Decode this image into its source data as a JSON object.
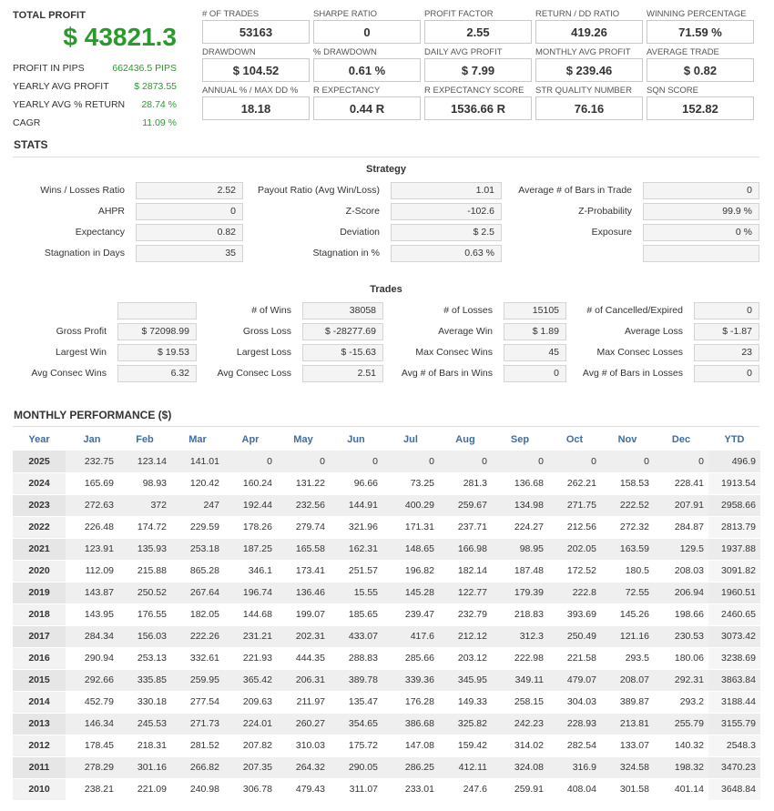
{
  "summary": {
    "total_profit_label": "TOTAL PROFIT",
    "total_profit_value": "$ 43821.3",
    "rows": [
      {
        "label": "PROFIT IN PIPS",
        "value": "662436.5 PIPS"
      },
      {
        "label": "YEARLY AVG PROFIT",
        "value": "$ 2873.55"
      },
      {
        "label": "YEARLY AVG % RETURN",
        "value": "28.74 %"
      },
      {
        "label": "CAGR",
        "value": "11.09 %"
      }
    ]
  },
  "metrics": [
    {
      "label": "# OF TRADES",
      "value": "53163"
    },
    {
      "label": "SHARPE RATIO",
      "value": "0"
    },
    {
      "label": "PROFIT FACTOR",
      "value": "2.55"
    },
    {
      "label": "RETURN / DD RATIO",
      "value": "419.26"
    },
    {
      "label": "WINNING PERCENTAGE",
      "value": "71.59 %"
    },
    {
      "label": "DRAWDOWN",
      "value": "$ 104.52"
    },
    {
      "label": "% DRAWDOWN",
      "value": "0.61 %"
    },
    {
      "label": "DAILY AVG PROFIT",
      "value": "$ 7.99"
    },
    {
      "label": "MONTHLY AVG PROFIT",
      "value": "$ 239.46"
    },
    {
      "label": "AVERAGE TRADE",
      "value": "$ 0.82"
    },
    {
      "label": "ANNUAL % / MAX DD %",
      "value": "18.18"
    },
    {
      "label": "R EXPECTANCY",
      "value": "0.44 R"
    },
    {
      "label": "R EXPECTANCY SCORE",
      "value": "1536.66 R"
    },
    {
      "label": "STR QUALITY NUMBER",
      "value": "76.16"
    },
    {
      "label": "SQN SCORE",
      "value": "152.82"
    }
  ],
  "stats": {
    "title": "STATS",
    "strategy_title": "Strategy",
    "strategy": [
      {
        "l1": "Wins / Losses Ratio",
        "v1": "2.52",
        "l2": "Payout Ratio (Avg Win/Loss)",
        "v2": "1.01",
        "l3": "Average # of Bars in Trade",
        "v3": "0"
      },
      {
        "l1": "AHPR",
        "v1": "0",
        "l2": "Z-Score",
        "v2": "-102.6",
        "l3": "Z-Probability",
        "v3": "99.9 %"
      },
      {
        "l1": "Expectancy",
        "v1": "0.82",
        "l2": "Deviation",
        "v2": "$ 2.5",
        "l3": "Exposure",
        "v3": "0 %"
      },
      {
        "l1": "Stagnation in Days",
        "v1": "35",
        "l2": "Stagnation in %",
        "v2": "0.63 %",
        "l3": "",
        "v3": ""
      }
    ],
    "trades_title": "Trades",
    "trades": [
      {
        "l1": "",
        "v1": "",
        "l2": "# of Wins",
        "v2": "38058",
        "l3": "# of Losses",
        "v3": "15105",
        "l4": "# of Cancelled/Expired",
        "v4": "0"
      },
      {
        "l1": "Gross Profit",
        "v1": "$ 72098.99",
        "l2": "Gross Loss",
        "v2": "$ -28277.69",
        "l3": "Average Win",
        "v3": "$ 1.89",
        "l4": "Average Loss",
        "v4": "$ -1.87"
      },
      {
        "l1": "Largest Win",
        "v1": "$ 19.53",
        "l2": "Largest Loss",
        "v2": "$ -15.63",
        "l3": "Max Consec Wins",
        "v3": "45",
        "l4": "Max Consec Losses",
        "v4": "23"
      },
      {
        "l1": "Avg Consec Wins",
        "v1": "6.32",
        "l2": "Avg Consec Loss",
        "v2": "2.51",
        "l3": "Avg # of Bars in Wins",
        "v3": "0",
        "l4": "Avg # of Bars in Losses",
        "v4": "0"
      }
    ]
  },
  "monthly": {
    "title": "MONTHLY PERFORMANCE ($)",
    "headers": [
      "Year",
      "Jan",
      "Feb",
      "Mar",
      "Apr",
      "May",
      "Jun",
      "Jul",
      "Aug",
      "Sep",
      "Oct",
      "Nov",
      "Dec",
      "YTD"
    ],
    "rows": [
      [
        "2025",
        "232.75",
        "123.14",
        "141.01",
        "0",
        "0",
        "0",
        "0",
        "0",
        "0",
        "0",
        "0",
        "0",
        "496.9"
      ],
      [
        "2024",
        "165.69",
        "98.93",
        "120.42",
        "160.24",
        "131.22",
        "96.66",
        "73.25",
        "281.3",
        "136.68",
        "262.21",
        "158.53",
        "228.41",
        "1913.54"
      ],
      [
        "2023",
        "272.63",
        "372",
        "247",
        "192.44",
        "232.56",
        "144.91",
        "400.29",
        "259.67",
        "134.98",
        "271.75",
        "222.52",
        "207.91",
        "2958.66"
      ],
      [
        "2022",
        "226.48",
        "174.72",
        "229.59",
        "178.26",
        "279.74",
        "321.96",
        "171.31",
        "237.71",
        "224.27",
        "212.56",
        "272.32",
        "284.87",
        "2813.79"
      ],
      [
        "2021",
        "123.91",
        "135.93",
        "253.18",
        "187.25",
        "165.58",
        "162.31",
        "148.65",
        "166.98",
        "98.95",
        "202.05",
        "163.59",
        "129.5",
        "1937.88"
      ],
      [
        "2020",
        "112.09",
        "215.88",
        "865.28",
        "346.1",
        "173.41",
        "251.57",
        "196.82",
        "182.14",
        "187.48",
        "172.52",
        "180.5",
        "208.03",
        "3091.82"
      ],
      [
        "2019",
        "143.87",
        "250.52",
        "267.64",
        "196.74",
        "136.46",
        "15.55",
        "145.28",
        "122.77",
        "179.39",
        "222.8",
        "72.55",
        "206.94",
        "1960.51"
      ],
      [
        "2018",
        "143.95",
        "176.55",
        "182.05",
        "144.68",
        "199.07",
        "185.65",
        "239.47",
        "232.79",
        "218.83",
        "393.69",
        "145.26",
        "198.66",
        "2460.65"
      ],
      [
        "2017",
        "284.34",
        "156.03",
        "222.26",
        "231.21",
        "202.31",
        "433.07",
        "417.6",
        "212.12",
        "312.3",
        "250.49",
        "121.16",
        "230.53",
        "3073.42"
      ],
      [
        "2016",
        "290.94",
        "253.13",
        "332.61",
        "221.93",
        "444.35",
        "288.83",
        "285.66",
        "203.12",
        "222.98",
        "221.58",
        "293.5",
        "180.06",
        "3238.69"
      ],
      [
        "2015",
        "292.66",
        "335.85",
        "259.95",
        "365.42",
        "206.31",
        "389.78",
        "339.36",
        "345.95",
        "349.11",
        "479.07",
        "208.07",
        "292.31",
        "3863.84"
      ],
      [
        "2014",
        "452.79",
        "330.18",
        "277.54",
        "209.63",
        "211.97",
        "135.47",
        "176.28",
        "149.33",
        "258.15",
        "304.03",
        "389.87",
        "293.2",
        "3188.44"
      ],
      [
        "2013",
        "146.34",
        "245.53",
        "271.73",
        "224.01",
        "260.27",
        "354.65",
        "386.68",
        "325.82",
        "242.23",
        "228.93",
        "213.81",
        "255.79",
        "3155.79"
      ],
      [
        "2012",
        "178.45",
        "218.31",
        "281.52",
        "207.82",
        "310.03",
        "175.72",
        "147.08",
        "159.42",
        "314.02",
        "282.54",
        "133.07",
        "140.32",
        "2548.3"
      ],
      [
        "2011",
        "278.29",
        "301.16",
        "266.82",
        "207.35",
        "264.32",
        "290.05",
        "286.25",
        "412.11",
        "324.08",
        "316.9",
        "324.58",
        "198.32",
        "3470.23"
      ],
      [
        "2010",
        "238.21",
        "221.09",
        "240.98",
        "306.78",
        "479.43",
        "311.07",
        "233.01",
        "247.6",
        "259.91",
        "408.04",
        "301.58",
        "401.14",
        "3648.84"
      ]
    ]
  },
  "colors": {
    "profit_green": "#2a9a2a",
    "header_blue": "#3a6ea5"
  }
}
